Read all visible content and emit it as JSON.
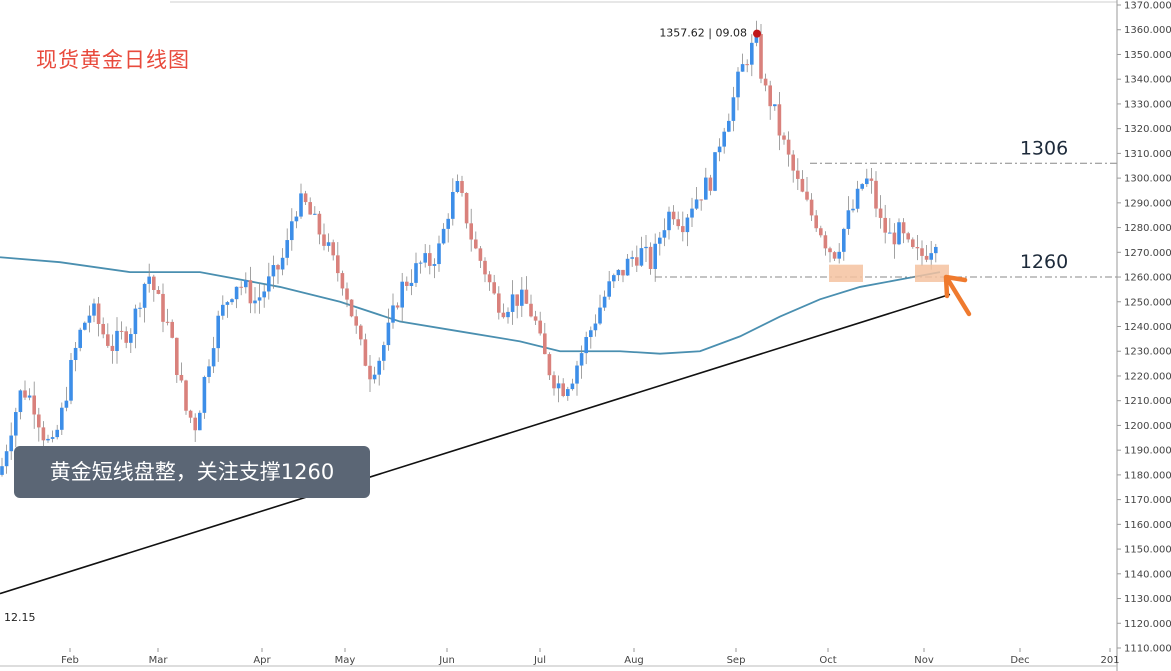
{
  "title": "现货黄金日线图",
  "callout": "黄金短线盘整，关注支撑1260",
  "colors": {
    "up": "#3d8ee8",
    "down": "#d9817c",
    "ma": "#4a8fb0",
    "trend": "#111111",
    "level": "#888888",
    "zone": "#f4c2a0",
    "arrow": "#ef7a2e",
    "peak": "#c0171a"
  },
  "chart_data": {
    "type": "candlestick",
    "title": "现货黄金日线图",
    "ylim": [
      1110,
      1370
    ],
    "y_ticks": [
      "1110.000",
      "1120.000",
      "1130.000",
      "1140.000",
      "1150.000",
      "1160.000",
      "1170.000",
      "1180.000",
      "1190.000",
      "1200.000",
      "1210.000",
      "1220.000",
      "1230.000",
      "1240.000",
      "1250.000",
      "1260.000",
      "1270.000",
      "1280.000",
      "1290.000",
      "1300.000",
      "1310.000",
      "1320.000",
      "1330.000",
      "1340.000",
      "1350.000",
      "1360.000",
      "1370.000"
    ],
    "x_ticks": [
      "Feb",
      "Mar",
      "Apr",
      "May",
      "Jun",
      "Jul",
      "Aug",
      "Sep",
      "Oct",
      "Nov",
      "Dec",
      "201"
    ],
    "bottom_left_label": "12.15",
    "peak": {
      "price": "1357.62",
      "date": "09.08",
      "value": 1357.62
    },
    "levels": [
      {
        "label": "1306",
        "value": 1306
      },
      {
        "label": "1260",
        "value": 1260
      }
    ],
    "price_path": [
      [
        0,
        1180
      ],
      [
        10,
        1198
      ],
      [
        22,
        1215
      ],
      [
        33,
        1210
      ],
      [
        44,
        1196
      ],
      [
        52,
        1190
      ],
      [
        62,
        1205
      ],
      [
        72,
        1225
      ],
      [
        82,
        1240
      ],
      [
        92,
        1247
      ],
      [
        102,
        1238
      ],
      [
        112,
        1232
      ],
      [
        122,
        1236
      ],
      [
        132,
        1240
      ],
      [
        140,
        1252
      ],
      [
        148,
        1262
      ],
      [
        158,
        1250
      ],
      [
        168,
        1240
      ],
      [
        178,
        1222
      ],
      [
        186,
        1206
      ],
      [
        196,
        1200
      ],
      [
        206,
        1222
      ],
      [
        216,
        1240
      ],
      [
        226,
        1250
      ],
      [
        236,
        1258
      ],
      [
        246,
        1255
      ],
      [
        256,
        1250
      ],
      [
        266,
        1256
      ],
      [
        276,
        1262
      ],
      [
        286,
        1270
      ],
      [
        294,
        1288
      ],
      [
        304,
        1290
      ],
      [
        314,
        1282
      ],
      [
        324,
        1275
      ],
      [
        334,
        1265
      ],
      [
        344,
        1258
      ],
      [
        352,
        1245
      ],
      [
        360,
        1232
      ],
      [
        370,
        1222
      ],
      [
        380,
        1228
      ],
      [
        390,
        1240
      ],
      [
        400,
        1255
      ],
      [
        410,
        1260
      ],
      [
        420,
        1265
      ],
      [
        430,
        1266
      ],
      [
        440,
        1272
      ],
      [
        450,
        1290
      ],
      [
        458,
        1296
      ],
      [
        466,
        1285
      ],
      [
        474,
        1272
      ],
      [
        484,
        1264
      ],
      [
        494,
        1252
      ],
      [
        504,
        1248
      ],
      [
        514,
        1252
      ],
      [
        524,
        1250
      ],
      [
        534,
        1244
      ],
      [
        542,
        1230
      ],
      [
        552,
        1220
      ],
      [
        562,
        1215
      ],
      [
        572,
        1220
      ],
      [
        582,
        1230
      ],
      [
        592,
        1240
      ],
      [
        602,
        1250
      ],
      [
        612,
        1258
      ],
      [
        622,
        1262
      ],
      [
        632,
        1268
      ],
      [
        642,
        1270
      ],
      [
        652,
        1265
      ],
      [
        662,
        1280
      ],
      [
        672,
        1288
      ],
      [
        682,
        1282
      ],
      [
        692,
        1290
      ],
      [
        702,
        1295
      ],
      [
        712,
        1300
      ],
      [
        722,
        1320
      ],
      [
        732,
        1330
      ],
      [
        740,
        1342
      ],
      [
        748,
        1350
      ],
      [
        756,
        1355
      ],
      [
        764,
        1336
      ],
      [
        772,
        1330
      ],
      [
        780,
        1318
      ],
      [
        790,
        1306
      ],
      [
        800,
        1295
      ],
      [
        810,
        1286
      ],
      [
        818,
        1282
      ],
      [
        828,
        1272
      ],
      [
        836,
        1270
      ],
      [
        846,
        1282
      ],
      [
        856,
        1290
      ],
      [
        864,
        1300
      ],
      [
        872,
        1296
      ],
      [
        880,
        1282
      ],
      [
        890,
        1276
      ],
      [
        900,
        1278
      ],
      [
        910,
        1270
      ],
      [
        920,
        1268
      ],
      [
        930,
        1272
      ],
      [
        940,
        1280
      ]
    ],
    "ma_path": [
      [
        0,
        1268
      ],
      [
        60,
        1266
      ],
      [
        130,
        1262
      ],
      [
        200,
        1262
      ],
      [
        280,
        1256
      ],
      [
        340,
        1250
      ],
      [
        400,
        1242
      ],
      [
        460,
        1238
      ],
      [
        520,
        1234
      ],
      [
        560,
        1230
      ],
      [
        590,
        1230
      ],
      [
        620,
        1230
      ],
      [
        660,
        1229
      ],
      [
        700,
        1230
      ],
      [
        740,
        1236
      ],
      [
        780,
        1244
      ],
      [
        820,
        1251
      ],
      [
        860,
        1256
      ],
      [
        900,
        1259
      ],
      [
        940,
        1262
      ]
    ],
    "trend_path": [
      [
        0,
        1132
      ],
      [
        950,
        1253
      ]
    ]
  }
}
